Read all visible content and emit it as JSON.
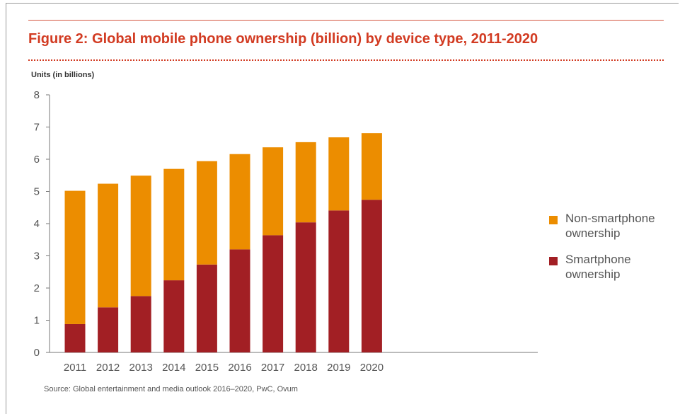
{
  "header": {
    "title": "Figure 2: Global mobile phone ownership (billion) by device type, 2011-2020",
    "units_label": "Units (in billions)"
  },
  "footer": {
    "source": "Source: Global entertainment and media outlook 2016–2020, PwC, Ovum"
  },
  "colors": {
    "accent": "#d23b22",
    "smartphone": "#a21f24",
    "non_smartphone": "#ec8d00"
  },
  "chart_data": {
    "type": "bar",
    "stacked": true,
    "title": "Figure 2: Global mobile phone ownership (billion) by device type, 2011-2020",
    "ylabel": "Units (in billions)",
    "xlabel": "",
    "ylim": [
      0,
      8
    ],
    "yticks": [
      0,
      1,
      2,
      3,
      4,
      5,
      6,
      7,
      8
    ],
    "grid": false,
    "legend_position": "right",
    "categories": [
      "2011",
      "2012",
      "2013",
      "2014",
      "2015",
      "2016",
      "2017",
      "2018",
      "2019",
      "2020"
    ],
    "series": [
      {
        "name": "Smartphone ownership",
        "color": "#a21f24",
        "values": [
          0.88,
          1.4,
          1.75,
          2.24,
          2.73,
          3.2,
          3.64,
          4.04,
          4.41,
          4.74
        ]
      },
      {
        "name": "Non-smartphone ownership",
        "color": "#ec8d00",
        "values": [
          4.14,
          3.84,
          3.74,
          3.46,
          3.21,
          2.96,
          2.73,
          2.49,
          2.27,
          2.07
        ]
      }
    ],
    "legend": [
      "Non-smartphone ownership",
      "Smartphone ownership"
    ]
  }
}
